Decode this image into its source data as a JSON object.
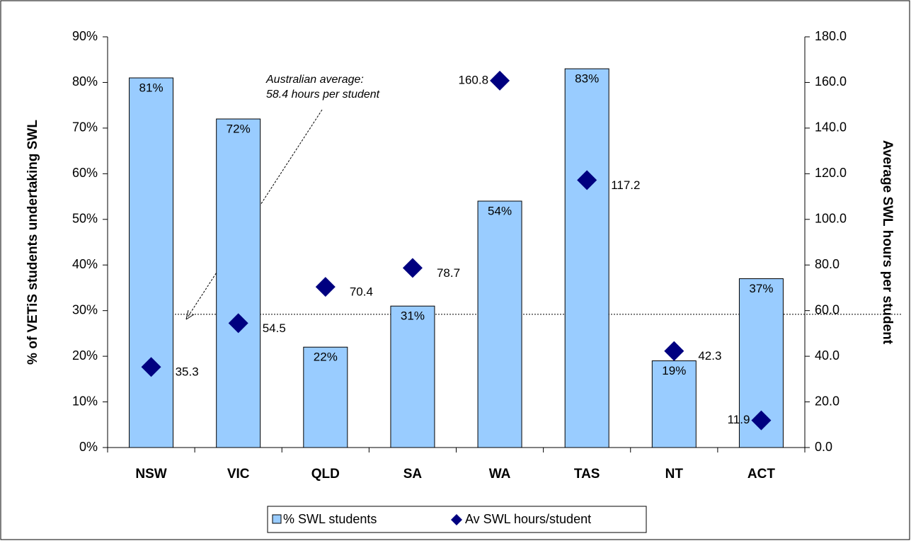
{
  "chart_data": {
    "type": "bar_scatter",
    "y_label": "% of VETiS students undertaking SWL",
    "y2_label": "Average SWL hours per student",
    "annotation": [
      "Australian average:",
      "58.4 hours per student"
    ],
    "average_line": 58.4,
    "categories": [
      "NSW",
      "VIC",
      "QLD",
      "SA",
      "WA",
      "TAS",
      "NT",
      "ACT"
    ],
    "series": [
      {
        "name": "% SWL students",
        "type": "bar",
        "color": "#99ccff",
        "values": [
          81,
          72,
          22,
          31,
          54,
          83,
          19,
          37
        ],
        "value_labels": [
          "81%",
          "72%",
          "22%",
          "31%",
          "54%",
          "83%",
          "19%",
          "37%"
        ]
      },
      {
        "name": "Av SWL hours/student",
        "type": "scatter",
        "axis": "y2",
        "color": "#000080",
        "values": [
          35.3,
          54.5,
          70.4,
          78.7,
          160.8,
          117.2,
          42.3,
          11.9
        ]
      }
    ],
    "ylim": [
      0,
      90
    ],
    "yticks": [
      {
        "value": 0,
        "label": "0%"
      },
      {
        "value": 10,
        "label": "10%"
      },
      {
        "value": 20,
        "label": "20%"
      },
      {
        "value": 30,
        "label": "30%"
      },
      {
        "value": 40,
        "label": "40%"
      },
      {
        "value": 50,
        "label": "50%"
      },
      {
        "value": 60,
        "label": "60%"
      },
      {
        "value": 70,
        "label": "70%"
      },
      {
        "value": 80,
        "label": "80%"
      },
      {
        "value": 90,
        "label": "90%"
      }
    ],
    "y2lim": [
      0,
      180
    ],
    "y2ticks": [
      {
        "value": 0,
        "label": "0.0"
      },
      {
        "value": 20,
        "label": "20.0"
      },
      {
        "value": 40,
        "label": "40.0"
      },
      {
        "value": 60,
        "label": "60.0"
      },
      {
        "value": 80,
        "label": "80.0"
      },
      {
        "value": 100,
        "label": "100.0"
      },
      {
        "value": 120,
        "label": "120.0"
      },
      {
        "value": 140,
        "label": "140.0"
      },
      {
        "value": 160,
        "label": "160.0"
      },
      {
        "value": 180,
        "label": "180.0"
      }
    ]
  }
}
